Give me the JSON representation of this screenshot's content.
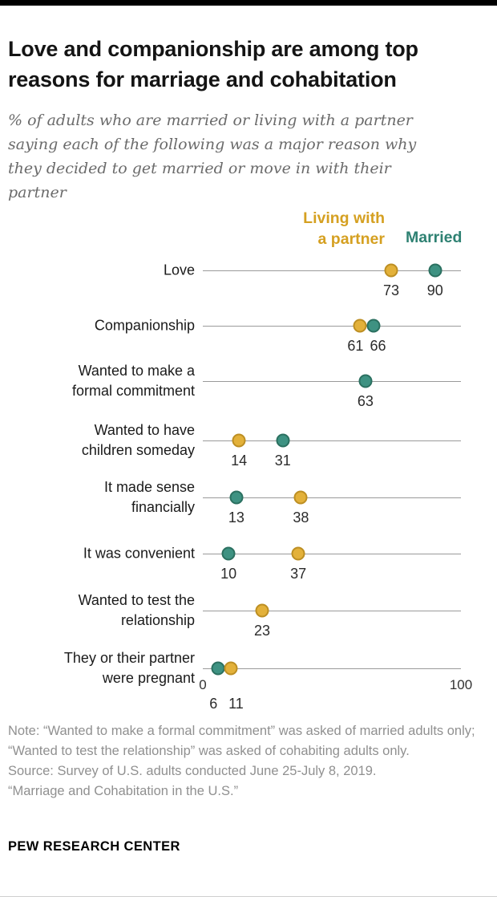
{
  "header": {
    "title": "Love and companionship are among top reasons for marriage and cohabitation",
    "subtitle": "% of adults who are married or living with a partner saying each of the following was a major reason why they decided to get married or move in with their partner"
  },
  "chart_data": {
    "type": "scatter",
    "xlim": [
      0,
      100
    ],
    "x_ticks": [
      "0",
      "100"
    ],
    "grid": false,
    "legend_position": "top-right",
    "legend": {
      "partner_label": "Living with\na partner",
      "married_label": "Married"
    },
    "colors": {
      "partner": "#E3B13A",
      "partner_border": "#BD8F23",
      "partner_text": "#D5A021",
      "married": "#3E9282",
      "married_border": "#2B7060",
      "married_text": "#2E8172",
      "axis_line": "#9A9A9A"
    },
    "rows": [
      {
        "label": "Love",
        "partner": 73,
        "married": 90
      },
      {
        "label": "Companionship",
        "partner": 61,
        "married": 66
      },
      {
        "label": "Wanted to make a\nformal commitment",
        "married": 63
      },
      {
        "label": "Wanted to have\nchildren someday",
        "partner": 14,
        "married": 31
      },
      {
        "label": "It made sense\nfinancially",
        "partner": 38,
        "married": 13
      },
      {
        "label": "It was convenient",
        "partner": 37,
        "married": 10
      },
      {
        "label": "Wanted to test the\nrelationship",
        "partner": 23
      },
      {
        "label": "They or their partner\nwere pregnant",
        "partner": 11,
        "married": 6
      }
    ]
  },
  "notes": {
    "note": "Note: “Wanted to make a formal commitment” was asked of married adults only; “Wanted to test the relationship” was asked of cohabiting adults only.",
    "source": "Source: Survey of U.S. adults conducted June 25-July 8, 2019.",
    "citation": "“Marriage and Cohabitation in the U.S.”"
  },
  "footer": {
    "brand": "PEW RESEARCH CENTER"
  }
}
